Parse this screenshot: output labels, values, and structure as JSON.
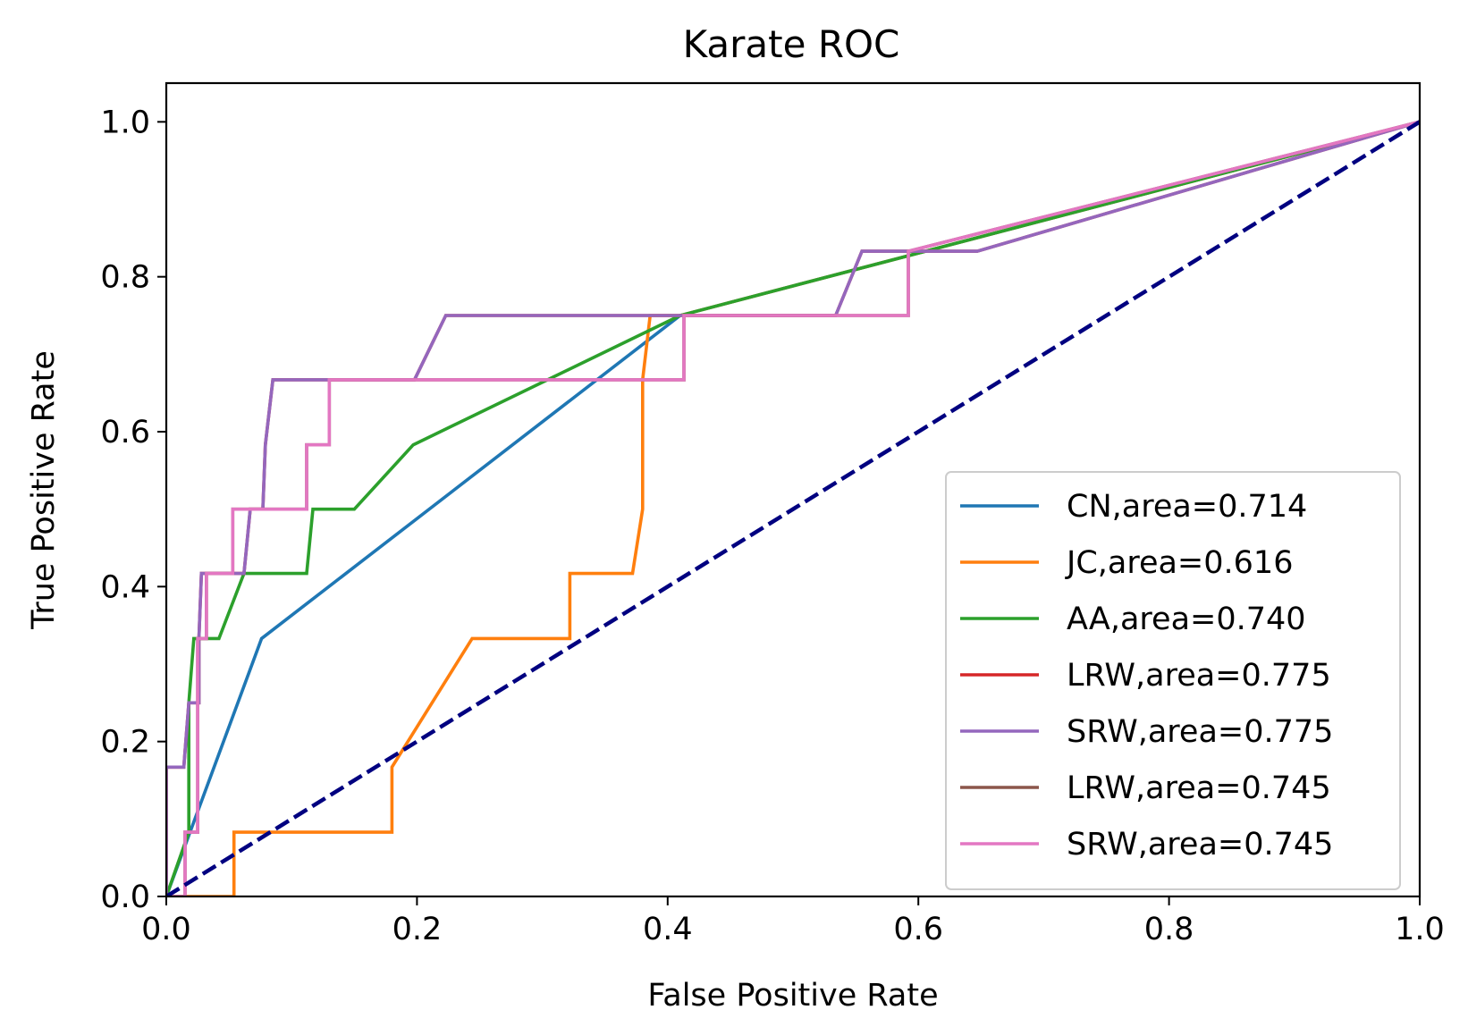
{
  "chart_data": {
    "type": "line",
    "title": "Karate ROC",
    "xlabel": "False Positive Rate",
    "ylabel": "True Positive Rate",
    "xlim": [
      0.0,
      1.0
    ],
    "ylim": [
      0.0,
      1.05
    ],
    "xticks": [
      "0.0",
      "0.2",
      "0.4",
      "0.6",
      "0.8",
      "1.0"
    ],
    "yticks": [
      "0.0",
      "0.2",
      "0.4",
      "0.6",
      "0.8",
      "1.0"
    ],
    "grid": false,
    "legend_position": "lower right",
    "diagonal": {
      "x": [
        0,
        1
      ],
      "y": [
        0,
        1
      ],
      "color": "#000080",
      "style": "dashed"
    },
    "series": [
      {
        "name": "CN,area=0.714",
        "color": "#1f77b4",
        "x": [
          0.0,
          0.0,
          0.076,
          0.41,
          0.41,
          1.0
        ],
        "y": [
          0.0,
          0.0,
          0.333,
          0.75,
          0.75,
          1.0
        ]
      },
      {
        "name": "JC,area=0.616",
        "color": "#ff7f0e",
        "x": [
          0.0,
          0.054,
          0.054,
          0.18,
          0.18,
          0.244,
          0.322,
          0.322,
          0.372,
          0.38,
          0.38,
          0.386,
          0.41,
          0.41,
          1.0
        ],
        "y": [
          0.0,
          0.0,
          0.083,
          0.083,
          0.167,
          0.333,
          0.333,
          0.417,
          0.417,
          0.5,
          0.667,
          0.75,
          0.75,
          0.75,
          1.0
        ]
      },
      {
        "name": "AA,area=0.740",
        "color": "#2ca02c",
        "x": [
          0.0,
          0.0,
          0.018,
          0.018,
          0.022,
          0.022,
          0.033,
          0.042,
          0.062,
          0.084,
          0.112,
          0.117,
          0.15,
          0.197,
          0.41,
          1.0
        ],
        "y": [
          0.0,
          0.0,
          0.083,
          0.25,
          0.333,
          0.333,
          0.333,
          0.333,
          0.417,
          0.417,
          0.417,
          0.5,
          0.5,
          0.583,
          0.75,
          1.0
        ]
      },
      {
        "name": "LRW,area=0.775",
        "color": "#d62728",
        "x": [
          0.0,
          0.0,
          0.014,
          0.018,
          0.026,
          0.026,
          0.028,
          0.062,
          0.067,
          0.077,
          0.079,
          0.085,
          0.198,
          0.223,
          0.41,
          0.534,
          0.555,
          0.59,
          0.647,
          1.0
        ],
        "y": [
          0.0,
          0.167,
          0.167,
          0.25,
          0.25,
          0.333,
          0.417,
          0.417,
          0.5,
          0.5,
          0.583,
          0.667,
          0.667,
          0.75,
          0.75,
          0.75,
          0.833,
          0.833,
          0.833,
          1.0
        ]
      },
      {
        "name": "SRW,area=0.775",
        "color": "#9467bd",
        "x": [
          0.0,
          0.0,
          0.014,
          0.018,
          0.026,
          0.026,
          0.028,
          0.062,
          0.067,
          0.077,
          0.079,
          0.085,
          0.198,
          0.223,
          0.41,
          0.534,
          0.555,
          0.59,
          0.647,
          1.0
        ],
        "y": [
          0.0,
          0.167,
          0.167,
          0.25,
          0.25,
          0.333,
          0.417,
          0.417,
          0.5,
          0.5,
          0.583,
          0.667,
          0.667,
          0.75,
          0.75,
          0.75,
          0.833,
          0.833,
          0.833,
          1.0
        ]
      },
      {
        "name": "LRW,area=0.745",
        "color": "#8c564b",
        "x": [
          0.0,
          0.015,
          0.015,
          0.025,
          0.025,
          0.032,
          0.032,
          0.053,
          0.053,
          0.112,
          0.112,
          0.13,
          0.13,
          0.413,
          0.413,
          0.592,
          0.592,
          1.0
        ],
        "y": [
          0.0,
          0.0,
          0.083,
          0.083,
          0.333,
          0.333,
          0.417,
          0.417,
          0.5,
          0.5,
          0.583,
          0.583,
          0.667,
          0.667,
          0.75,
          0.75,
          0.833,
          1.0
        ]
      },
      {
        "name": "SRW,area=0.745",
        "color": "#e377c2",
        "x": [
          0.0,
          0.015,
          0.015,
          0.025,
          0.025,
          0.032,
          0.032,
          0.053,
          0.053,
          0.112,
          0.112,
          0.13,
          0.13,
          0.413,
          0.413,
          0.592,
          0.592,
          1.0
        ],
        "y": [
          0.0,
          0.0,
          0.083,
          0.083,
          0.333,
          0.333,
          0.417,
          0.417,
          0.5,
          0.5,
          0.583,
          0.583,
          0.667,
          0.667,
          0.75,
          0.75,
          0.833,
          1.0
        ]
      }
    ]
  }
}
